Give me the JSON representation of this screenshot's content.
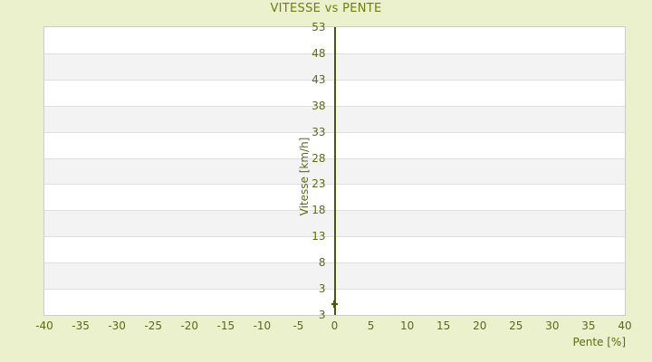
{
  "chart_data": {
    "type": "scatter",
    "title": "VITESSE vs PENTE",
    "xlabel": "Pente [%]",
    "ylabel": "Vitesse [km/h]",
    "xlim": [
      -40,
      40
    ],
    "ylim": [
      -2,
      53
    ],
    "x_ticks": [
      -40,
      -35,
      -30,
      -25,
      -20,
      -15,
      -10,
      -5,
      0,
      5,
      10,
      15,
      20,
      25,
      30,
      35,
      40
    ],
    "y_ticks": [
      53,
      48,
      43,
      38,
      33,
      28,
      23,
      18,
      13,
      8,
      3
    ],
    "y_baseline_label": "3",
    "y_axis_line_at_x": 0,
    "grid": "horizontal-alternating-bands",
    "legend": "none",
    "points": [
      {
        "x": 0,
        "y": 0
      }
    ],
    "marker": "plus",
    "colors": {
      "background": "#ebf0cd",
      "title_text": "#6f7d12",
      "tick_text": "#5d6a10",
      "band_white": "#ffffff",
      "band_gray": "#f3f3f3",
      "gridline": "#dedede",
      "plot_border": "#cccccc",
      "axis_line": "#4a560d",
      "marker": "#4a560d"
    }
  }
}
